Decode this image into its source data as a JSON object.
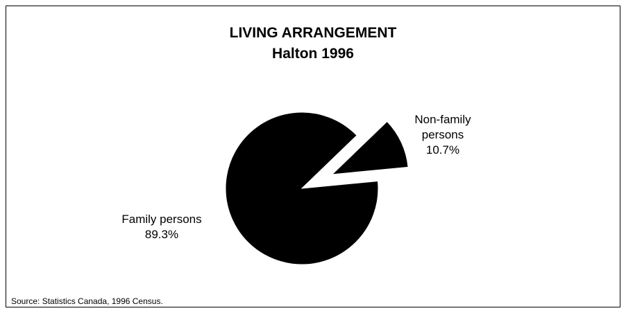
{
  "chart_data": {
    "type": "pie",
    "title": "LIVING ARRANGEMENT",
    "subtitle": "Halton 1996",
    "categories": [
      "Family persons",
      "Non-family persons"
    ],
    "values": [
      89.3,
      10.7
    ],
    "value_labels": [
      "89.3%",
      "10.7%"
    ],
    "colors": [
      "#000000",
      "#000000"
    ],
    "exploded": [
      false,
      true
    ],
    "source": "Source: Statistics Canada, 1996 Census."
  }
}
